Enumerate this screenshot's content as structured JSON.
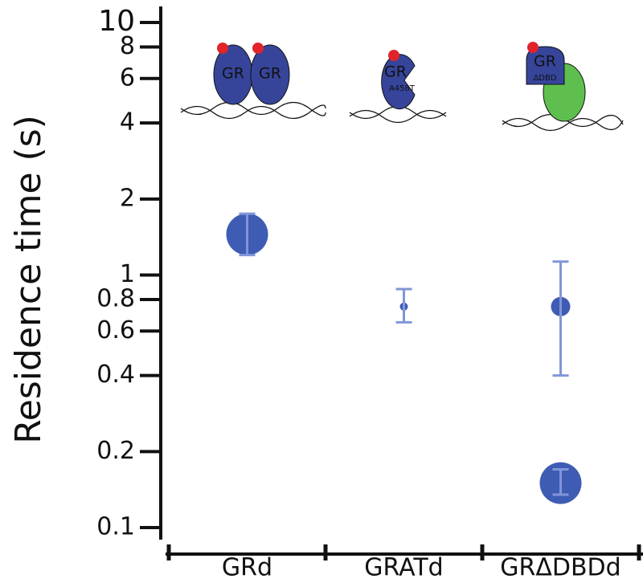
{
  "chart_data": {
    "type": "scatter",
    "y_label": "Residence time (s)",
    "categories": [
      "GRd",
      "GRATd",
      "GRΔDBDd"
    ],
    "log_y": true,
    "ylim": [
      0.1,
      10
    ],
    "yticks": [
      {
        "value": 0.1,
        "label": "0.1"
      },
      0.2,
      0.4,
      0.6,
      0.8,
      1,
      {
        "value": 2,
        "label": "2"
      },
      {
        "value": 4,
        "label": "4"
      },
      {
        "value": 6,
        "label": "6"
      },
      {
        "value": 8,
        "label": "8"
      },
      10
    ],
    "series": [
      {
        "color": "#3f5cb4",
        "error_color": "#8196d8",
        "values": [
          1.45,
          null,
          0.15
        ],
        "error_low": [
          1.2,
          null,
          0.135
        ],
        "error_high": [
          1.75,
          null,
          0.17
        ],
        "sizes": [
          26,
          null,
          26
        ]
      },
      {
        "color": "#3f5cb4",
        "error_color": "#8196d8",
        "values": [
          null,
          0.75,
          0.75
        ],
        "error_low": [
          null,
          0.65,
          0.4
        ],
        "error_high": [
          null,
          0.88,
          1.13
        ],
        "sizes": [
          null,
          5,
          12
        ]
      }
    ],
    "annotations": [
      "GR",
      "GR",
      "GR",
      "A458T",
      "GR",
      "ΔDBD"
    ]
  }
}
